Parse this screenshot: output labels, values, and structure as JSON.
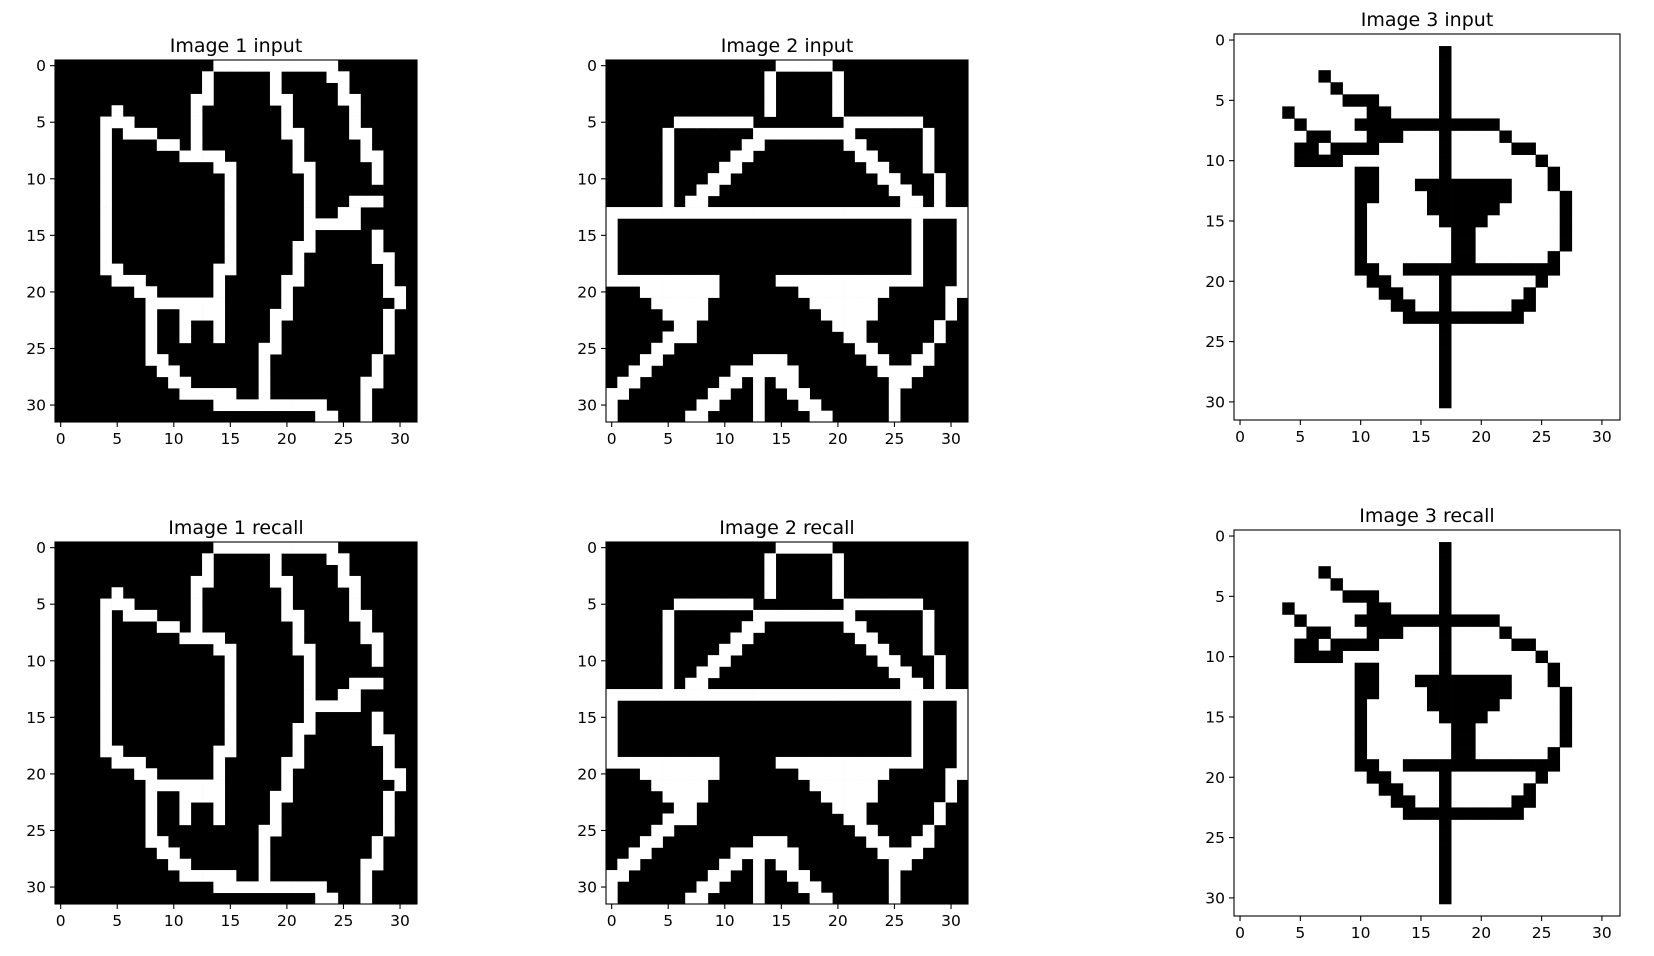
{
  "chart_data": [
    {
      "type": "heatmap",
      "title": "Image 1 input",
      "cmap": "gray",
      "background": "black",
      "foreground": "white",
      "grid_size": 32,
      "xticks": [
        0,
        5,
        10,
        15,
        20,
        25,
        30
      ],
      "yticks": [
        0,
        5,
        10,
        15,
        20,
        25,
        30
      ],
      "pixels": [
        "00000000000000111111111110000000",
        "00000000000001000001000011000000",
        "00000000000001000001000001000000",
        "00000000000011000001100001100000",
        "00000100000010000000100000100000",
        "00001110000010000000100000100000",
        "00001011100010000000110000110000",
        "00001000011010000000010000010000",
        "00001000000111100000010000011000",
        "00001000000000110000011000001000",
        "00001000000000010000001000001000",
        "00001000000000010000001000000000",
        "00001000000000010000001000111000",
        "00001000000000010000001001100000",
        "00001000000000010000001111100000",
        "00001000000000010000001000001000",
        "00001000000000010000011000001000",
        "00001000000000010000010000001100",
        "00001100000000110000010000000100",
        "00000111000000100000110000000100",
        "00000001100000100000100000000110",
        "00000000111111100000100000000010",
        "00000000100111100001100000000100",
        "00000000100100100001000000000100",
        "00000000100100100001000000000100",
        "00000000100000000011000000000100",
        "00000000110000000010000000001000",
        "00000000011000000010000000001000",
        "00000000001100000010000000011000",
        "00000000000111110010000000010000",
        "00000000000000111111111100010000",
        "00000000000000000000000110010000"
      ]
    },
    {
      "type": "heatmap",
      "title": "Image 2 input",
      "cmap": "gray",
      "background": "black",
      "foreground": "white",
      "grid_size": 32,
      "xticks": [
        0,
        5,
        10,
        15,
        20,
        25,
        30
      ],
      "yticks": [
        0,
        5,
        10,
        15,
        20,
        25,
        30
      ],
      "pixels": [
        "00000000000000011111000000000000",
        "00000000000000100000100000000000",
        "00000000000000100000100000000000",
        "00000000000000100000100000000000",
        "00000000000000100000100000000000",
        "00000011111110000000011111110000",
        "00000100000001111111110000001000",
        "00000100000011000000011000001000",
        "00000100000110000000001100001000",
        "00000100001100000000000110001000",
        "00000100011000000000000011000100",
        "00000100110000000000000001100100",
        "00000101100000000000000000110100",
        "11111111111111111111111111111111",
        "10000000000000000000000000010001",
        "10000000000000000000000000010001",
        "10000000000000000000000000010001",
        "10000000000000000000000000010001",
        "10000000000000000000000000010001",
        "11111111110000011111111111110001",
        "00011111110000000111111110000011",
        "00001111100000000011111100000010",
        "00000111100000000001111100000010",
        "00000011000000000000111000000100",
        "00000111000000000000011000000100",
        "00001100000000000000001100001000",
        "00011000000001110000000110011000",
        "00110000000111111000000011110000",
        "01100000001101011000000001100000",
        "11000000011001001100000001000000",
        "10000000110001000110000001000000",
        "10000001100001000011000001000000"
      ]
    },
    {
      "type": "heatmap",
      "title": "Image 3 input",
      "cmap": "gray",
      "background": "white",
      "foreground": "black",
      "grid_size": 32,
      "xticks": [
        0,
        5,
        10,
        15,
        20,
        25,
        30
      ],
      "yticks": [
        0,
        5,
        10,
        15,
        20,
        25,
        30
      ],
      "pixels": [
        "00000000000000000000000000000000",
        "00000000000000000100000000000000",
        "00000000000000000100000000000000",
        "00000001000000000100000000000000",
        "00000000100000000100000000000000",
        "00000000011100000100000000000000",
        "00001000000110000100000000000000",
        "00000100001111111111110000000000",
        "00000011000111000100001000000000",
        "00000110111100000100000110000000",
        "00000111100000000100000001000000",
        "00000000001100000100000000100000",
        "00000000001100011111111000100000",
        "00000000001100001111111000010000",
        "00000000001000001111110000010000",
        "00000000001000000111100000010000",
        "00000000001000000011000000010000",
        "00000000001000000011000000010000",
        "00000000001000000011000000100000",
        "00000000001100111111111111100000",
        "00000000000110000100000001000000",
        "00000000000011000100000010000000",
        "00000000000001100100000110000000",
        "00000000000000111111111100000000",
        "00000000000000000100000000000000",
        "00000000000000000100000000000000",
        "00000000000000000100000000000000",
        "00000000000000000100000000000000",
        "00000000000000000100000000000000",
        "00000000000000000100000000000000",
        "00000000000000000100000000000000",
        "00000000000000000000000000000000"
      ]
    },
    {
      "type": "heatmap",
      "title": "Image 1 recall",
      "cmap": "gray",
      "background": "black",
      "foreground": "white",
      "grid_size": 32,
      "xticks": [
        0,
        5,
        10,
        15,
        20,
        25,
        30
      ],
      "yticks": [
        0,
        5,
        10,
        15,
        20,
        25,
        30
      ],
      "pixels": [
        "00000000000000111111111110000000",
        "00000000000001000001000011000000",
        "00000000000001000001000001000000",
        "00000000000011000001100001100000",
        "00000100000010000000100000100000",
        "00001110000010000000100000100000",
        "00001011100010000000110000110000",
        "00001000011010000000010000010000",
        "00001000000111100000010000011000",
        "00001000000000110000011000001000",
        "00001000000000010000001000001000",
        "00001000000000010000001000000000",
        "00001000000000010000001000111000",
        "00001000000000010000001001100000",
        "00001000000000010000001111100000",
        "00001000000000010000001000001000",
        "00001000000000010000011000001000",
        "00001000000000010000010000001100",
        "00001100000000110000010000000100",
        "00000111000000100000110000000100",
        "00000001100000100000100000000110",
        "00000000111111100000100000000010",
        "00000000100111100001100000000100",
        "00000000100100100001000000000100",
        "00000000100100100001000000000100",
        "00000000100000000011000000000100",
        "00000000110000000010000000001000",
        "00000000011000000010000000001000",
        "00000000001100000010000000011000",
        "00000000000111110010000000010000",
        "00000000000000111111111100010000",
        "00000000000000000000000110010000"
      ]
    },
    {
      "type": "heatmap",
      "title": "Image 2 recall",
      "cmap": "gray",
      "background": "black",
      "foreground": "white",
      "grid_size": 32,
      "xticks": [
        0,
        5,
        10,
        15,
        20,
        25,
        30
      ],
      "yticks": [
        0,
        5,
        10,
        15,
        20,
        25,
        30
      ],
      "pixels": [
        "00000000000000011111000000000000",
        "00000000000000100000100000000000",
        "00000000000000100000100000000000",
        "00000000000000100000100000000000",
        "00000000000000100000100000000000",
        "00000011111110000000011111110000",
        "00000100000001111111110000001000",
        "00000100000011000000011000001000",
        "00000100000110000000001100001000",
        "00000100001100000000000110001000",
        "00000100011000000000000011000100",
        "00000100110000000000000001100100",
        "00000101100000000000000000110100",
        "11111111111111111111111111111111",
        "10000000000000000000000000010001",
        "10000000000000000000000000010001",
        "10000000000000000000000000010001",
        "10000000000000000000000000010001",
        "10000000000000000000000000010001",
        "11111111110000011111111111110001",
        "00011111110000000111111110000011",
        "00001111100000000011111100000010",
        "00000111100000000001111100000010",
        "00000011000000000000111000000100",
        "00000111000000000000011000000100",
        "00001100000000000000001100001000",
        "00011000000001110000000110011000",
        "00110000000111111000000011110000",
        "01100000001101011000000001100000",
        "11000000011001001100000001000000",
        "10000000110001000110000001000000",
        "10000001100001000011000001000000"
      ]
    },
    {
      "type": "heatmap",
      "title": "Image 3 recall",
      "cmap": "gray",
      "background": "white",
      "foreground": "black",
      "grid_size": 32,
      "xticks": [
        0,
        5,
        10,
        15,
        20,
        25,
        30
      ],
      "yticks": [
        0,
        5,
        10,
        15,
        20,
        25,
        30
      ],
      "pixels": [
        "00000000000000000000000000000000",
        "00000000000000000100000000000000",
        "00000000000000000100000000000000",
        "00000001000000000100000000000000",
        "00000000100000000100000000000000",
        "00000000011100000100000000000000",
        "00001000000110000100000000000000",
        "00000100001111111111110000000000",
        "00000011000111000100001000000000",
        "00000110111100000100000110000000",
        "00000111100000000100000001000000",
        "00000000001100000100000000100000",
        "00000000001100011111111000100000",
        "00000000001100001111111000010000",
        "00000000001000001111110000010000",
        "00000000001000000111100000010000",
        "00000000001000000011000000010000",
        "00000000001000000011000000010000",
        "00000000001000000011000000100000",
        "00000000001100111111111111100000",
        "00000000000110000100000001000000",
        "00000000000011000100000010000000",
        "00000000000001100100000110000000",
        "00000000000000111111111100000000",
        "00000000000000000100000000000000",
        "00000000000000000100000000000000",
        "00000000000000000100000000000000",
        "00000000000000000100000000000000",
        "00000000000000000100000000000000",
        "00000000000000000100000000000000",
        "00000000000000000100000000000000",
        "00000000000000000000000000000000"
      ]
    }
  ]
}
